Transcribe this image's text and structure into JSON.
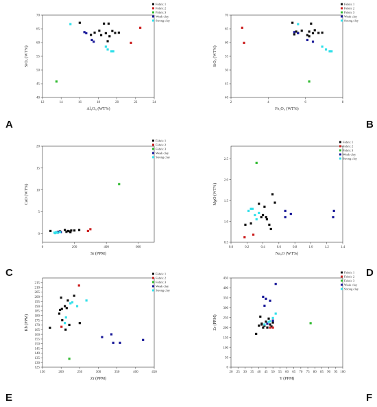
{
  "legend_default": [
    "Fabric 1",
    "Fabric 2",
    "Fabric 3",
    "Weak clay",
    "Strong clay"
  ],
  "series_colors": [
    "#111111",
    "#cc2222",
    "#33bb33",
    "#1a1a99",
    "#33e0ea"
  ],
  "chart_data": [
    {
      "letter": "A",
      "type": "scatter",
      "xlabel": "Al₂O₃ (WT%)",
      "ylabel": "SiO₂ (WT%)",
      "xlim": [
        12,
        24
      ],
      "ylim": [
        40,
        70
      ],
      "xticks": [
        12,
        14,
        16,
        18,
        20,
        22,
        24
      ],
      "yticks": [
        40,
        45,
        50,
        55,
        60,
        65,
        70
      ],
      "legend": [
        "Fabric 1",
        "Fabric 2",
        "Fabric 3",
        "Weak clay",
        "Strong clay"
      ],
      "series": [
        {
          "points": [
            [
              16.0,
              67.2
            ],
            [
              17.2,
              62.8
            ],
            [
              17.6,
              63.6
            ],
            [
              18.1,
              64.3
            ],
            [
              18.3,
              62.7
            ],
            [
              18.6,
              66.9
            ],
            [
              18.8,
              63.4
            ],
            [
              19.1,
              66.9
            ],
            [
              19.2,
              62.3
            ],
            [
              19.5,
              64.2
            ],
            [
              19.8,
              63.5
            ],
            [
              20.2,
              63.6
            ],
            [
              19.0,
              60.5
            ]
          ]
        },
        {
          "points": [
            [
              21.5,
              59.9
            ],
            [
              22.5,
              65.4
            ]
          ]
        },
        {
          "points": [
            [
              13.5,
              45.8
            ]
          ]
        },
        {
          "points": [
            [
              16.5,
              63.8
            ],
            [
              16.7,
              63.4
            ],
            [
              17.3,
              60.9
            ],
            [
              17.5,
              60.3
            ]
          ]
        },
        {
          "points": [
            [
              15.0,
              66.7
            ],
            [
              18.8,
              58.5
            ],
            [
              19.0,
              57.5
            ],
            [
              19.4,
              56.8
            ],
            [
              19.6,
              56.8
            ]
          ]
        }
      ]
    },
    {
      "letter": "B",
      "type": "scatter",
      "xlabel": "Fe₂O₃ (WT%)",
      "ylabel": "SiO₂ (WT%)",
      "xlim": [
        2,
        8
      ],
      "ylim": [
        40,
        70
      ],
      "xticks": [
        2,
        4,
        6,
        8
      ],
      "yticks": [
        40,
        45,
        50,
        55,
        60,
        65,
        70
      ],
      "legend": [
        "Fabric 1",
        "Fabric 2",
        "Fabric 3",
        "Weak clay",
        "Strong clay"
      ],
      "series": [
        {
          "points": [
            [
              5.3,
              67.2
            ],
            [
              5.4,
              63.0
            ],
            [
              5.5,
              64.0
            ],
            [
              5.6,
              63.5
            ],
            [
              5.8,
              64.3
            ],
            [
              6.1,
              62.7
            ],
            [
              6.2,
              64.0
            ],
            [
              6.3,
              66.9
            ],
            [
              6.4,
              63.4
            ],
            [
              6.5,
              64.5
            ],
            [
              6.7,
              63.5
            ],
            [
              6.9,
              63.6
            ],
            [
              6.2,
              62.3
            ]
          ]
        },
        {
          "points": [
            [
              2.6,
              65.4
            ],
            [
              2.7,
              59.9
            ]
          ]
        },
        {
          "points": [
            [
              6.2,
              45.8
            ]
          ]
        },
        {
          "points": [
            [
              5.4,
              63.8
            ],
            [
              5.6,
              63.4
            ],
            [
              6.1,
              60.9
            ],
            [
              6.4,
              60.3
            ]
          ]
        },
        {
          "points": [
            [
              5.6,
              66.7
            ],
            [
              6.9,
              58.5
            ],
            [
              7.1,
              57.5
            ],
            [
              7.3,
              56.8
            ],
            [
              7.4,
              56.8
            ]
          ]
        }
      ]
    },
    {
      "letter": "C",
      "type": "scatter",
      "xlabel": "Sr (PPM)",
      "ylabel": "CaO (WT%)",
      "xlim": [
        0,
        700
      ],
      "ylim": [
        -2,
        20
      ],
      "xticks": [
        0,
        200,
        400,
        600
      ],
      "yticks": [
        0,
        5,
        10,
        15,
        20
      ],
      "legend": [
        "Fabric 1",
        "Fabric 2",
        "Fabric 3",
        "Weak clay",
        "Strong clay"
      ],
      "series": [
        {
          "points": [
            [
              50,
              0.6
            ],
            [
              100,
              0.4
            ],
            [
              110,
              0.5
            ],
            [
              140,
              0.8
            ],
            [
              160,
              0.6
            ],
            [
              170,
              0.5
            ],
            [
              180,
              0.7
            ],
            [
              200,
              0.7
            ],
            [
              230,
              0.8
            ],
            [
              150,
              0.4
            ],
            [
              175,
              0.3
            ]
          ]
        },
        {
          "points": [
            [
              285,
              0.6
            ],
            [
              300,
              1.0
            ]
          ]
        },
        {
          "points": [
            [
              480,
              11.3
            ]
          ]
        },
        {
          "points": [
            [
              90,
              0.3
            ],
            [
              95,
              0.2
            ],
            [
              105,
              0.4
            ],
            [
              115,
              0.3
            ]
          ]
        },
        {
          "points": [
            [
              75,
              0.2
            ],
            [
              85,
              0.3
            ],
            [
              95,
              0.2
            ],
            [
              110,
              0.3
            ],
            [
              80,
              0.1
            ]
          ]
        }
      ]
    },
    {
      "letter": "D",
      "type": "scatter",
      "xlabel": "Na₂O (WT%)",
      "ylabel": "MgO (WT%)",
      "xlim": [
        0,
        1.4
      ],
      "ylim": [
        0.5,
        2.8
      ],
      "xticks": [
        0.0,
        0.2,
        0.4,
        0.6,
        0.8,
        1.0,
        1.2,
        1.4
      ],
      "yticks": [
        0.5,
        1.0,
        1.5,
        2.0,
        2.5
      ],
      "legend": [
        "Fabric 1",
        "Fabric 2",
        "Fabric 3",
        "Weak clay",
        "Strong clay"
      ],
      "series": [
        {
          "points": [
            [
              0.18,
              0.92
            ],
            [
              0.25,
              0.95
            ],
            [
              0.35,
              1.42
            ],
            [
              0.4,
              1.15
            ],
            [
              0.42,
              1.35
            ],
            [
              0.45,
              1.05
            ],
            [
              0.48,
              0.92
            ],
            [
              0.5,
              0.82
            ],
            [
              0.52,
              1.65
            ],
            [
              0.55,
              1.45
            ],
            [
              0.38,
              1.1
            ],
            [
              0.44,
              1.1
            ]
          ]
        },
        {
          "points": [
            [
              0.17,
              0.62
            ],
            [
              0.28,
              0.68
            ]
          ]
        },
        {
          "points": [
            [
              0.32,
              2.4
            ]
          ]
        },
        {
          "points": [
            [
              0.68,
              1.1
            ],
            [
              0.68,
              1.25
            ],
            [
              0.75,
              1.18
            ],
            [
              1.28,
              1.1
            ],
            [
              1.29,
              1.25
            ]
          ]
        },
        {
          "points": [
            [
              0.22,
              1.25
            ],
            [
              0.25,
              1.3
            ],
            [
              0.27,
              1.3
            ],
            [
              0.3,
              1.15
            ],
            [
              0.32,
              1.05
            ],
            [
              0.35,
              1.2
            ]
          ]
        }
      ]
    },
    {
      "letter": "E",
      "type": "scatter",
      "xlabel": "Zr (PPM)",
      "ylabel": "Rb (PPM)",
      "xlim": [
        150,
        450
      ],
      "ylim": [
        125,
        220
      ],
      "xticks": [
        150,
        200,
        250,
        300,
        350,
        400,
        450
      ],
      "yticks": [
        125,
        130,
        135,
        140,
        145,
        150,
        155,
        160,
        165,
        170,
        175,
        180,
        185,
        190,
        195,
        200,
        205,
        210,
        215
      ],
      "legend": [
        "Fabric 1",
        "Fabric 2",
        "Fabric 3",
        "Weak clay",
        "Strong clay"
      ],
      "series": [
        {
          "points": [
            [
              170,
              167
            ],
            [
              195,
              182
            ],
            [
              197,
              186
            ],
            [
              200,
              199
            ],
            [
              202,
              187
            ],
            [
              210,
              190
            ],
            [
              212,
              165
            ],
            [
              215,
              188
            ],
            [
              218,
              196
            ],
            [
              222,
              170
            ],
            [
              235,
              201
            ],
            [
              250,
              172
            ],
            [
              203,
              175
            ]
          ]
        },
        {
          "points": [
            [
              201,
              168
            ],
            [
              248,
              212
            ]
          ]
        },
        {
          "points": [
            [
              222,
              134
            ]
          ]
        },
        {
          "points": [
            [
              310,
              157
            ],
            [
              335,
              160
            ],
            [
              340,
              151
            ],
            [
              358,
              151
            ],
            [
              420,
              154
            ]
          ]
        },
        {
          "points": [
            [
              210,
              172
            ],
            [
              225,
              193
            ],
            [
              230,
              194
            ],
            [
              243,
              190
            ],
            [
              268,
              196
            ],
            [
              213,
              178
            ]
          ]
        }
      ]
    },
    {
      "letter": "F",
      "type": "scatter",
      "xlabel": "Y (PPM)",
      "ylabel": "Zr (PPM)",
      "xlim": [
        20,
        100
      ],
      "ylim": [
        0,
        450
      ],
      "xticks": [
        20,
        25,
        30,
        35,
        40,
        45,
        50,
        55,
        60,
        65,
        70,
        75,
        80,
        85,
        90,
        95,
        100
      ],
      "yticks": [
        0,
        50,
        100,
        150,
        200,
        250,
        300,
        350,
        400,
        450
      ],
      "legend": [
        "Fabric 1",
        "Fabric 2",
        "Fabric 3",
        "Weak clay",
        "Strong clay"
      ],
      "series": [
        {
          "points": [
            [
              38,
              168
            ],
            [
              40,
              210
            ],
            [
              41,
              255
            ],
            [
              42,
              220
            ],
            [
              43,
              200
            ],
            [
              44,
              210
            ],
            [
              45,
              230
            ],
            [
              46,
              200
            ],
            [
              47,
              245
            ],
            [
              48,
              215
            ],
            [
              49,
              205
            ],
            [
              50,
              225
            ],
            [
              42,
              215
            ]
          ]
        },
        {
          "points": [
            [
              48,
              200
            ],
            [
              50,
              200
            ]
          ]
        },
        {
          "points": [
            [
              77,
              222
            ]
          ]
        },
        {
          "points": [
            [
              43,
              355
            ],
            [
              44,
              310
            ],
            [
              45,
              345
            ],
            [
              46,
              220
            ],
            [
              48,
              335
            ],
            [
              50,
              235
            ],
            [
              52,
              420
            ]
          ]
        },
        {
          "points": [
            [
              44,
              215
            ],
            [
              47,
              228
            ],
            [
              48,
              232
            ],
            [
              50,
              248
            ],
            [
              52,
              270
            ]
          ]
        }
      ]
    }
  ]
}
